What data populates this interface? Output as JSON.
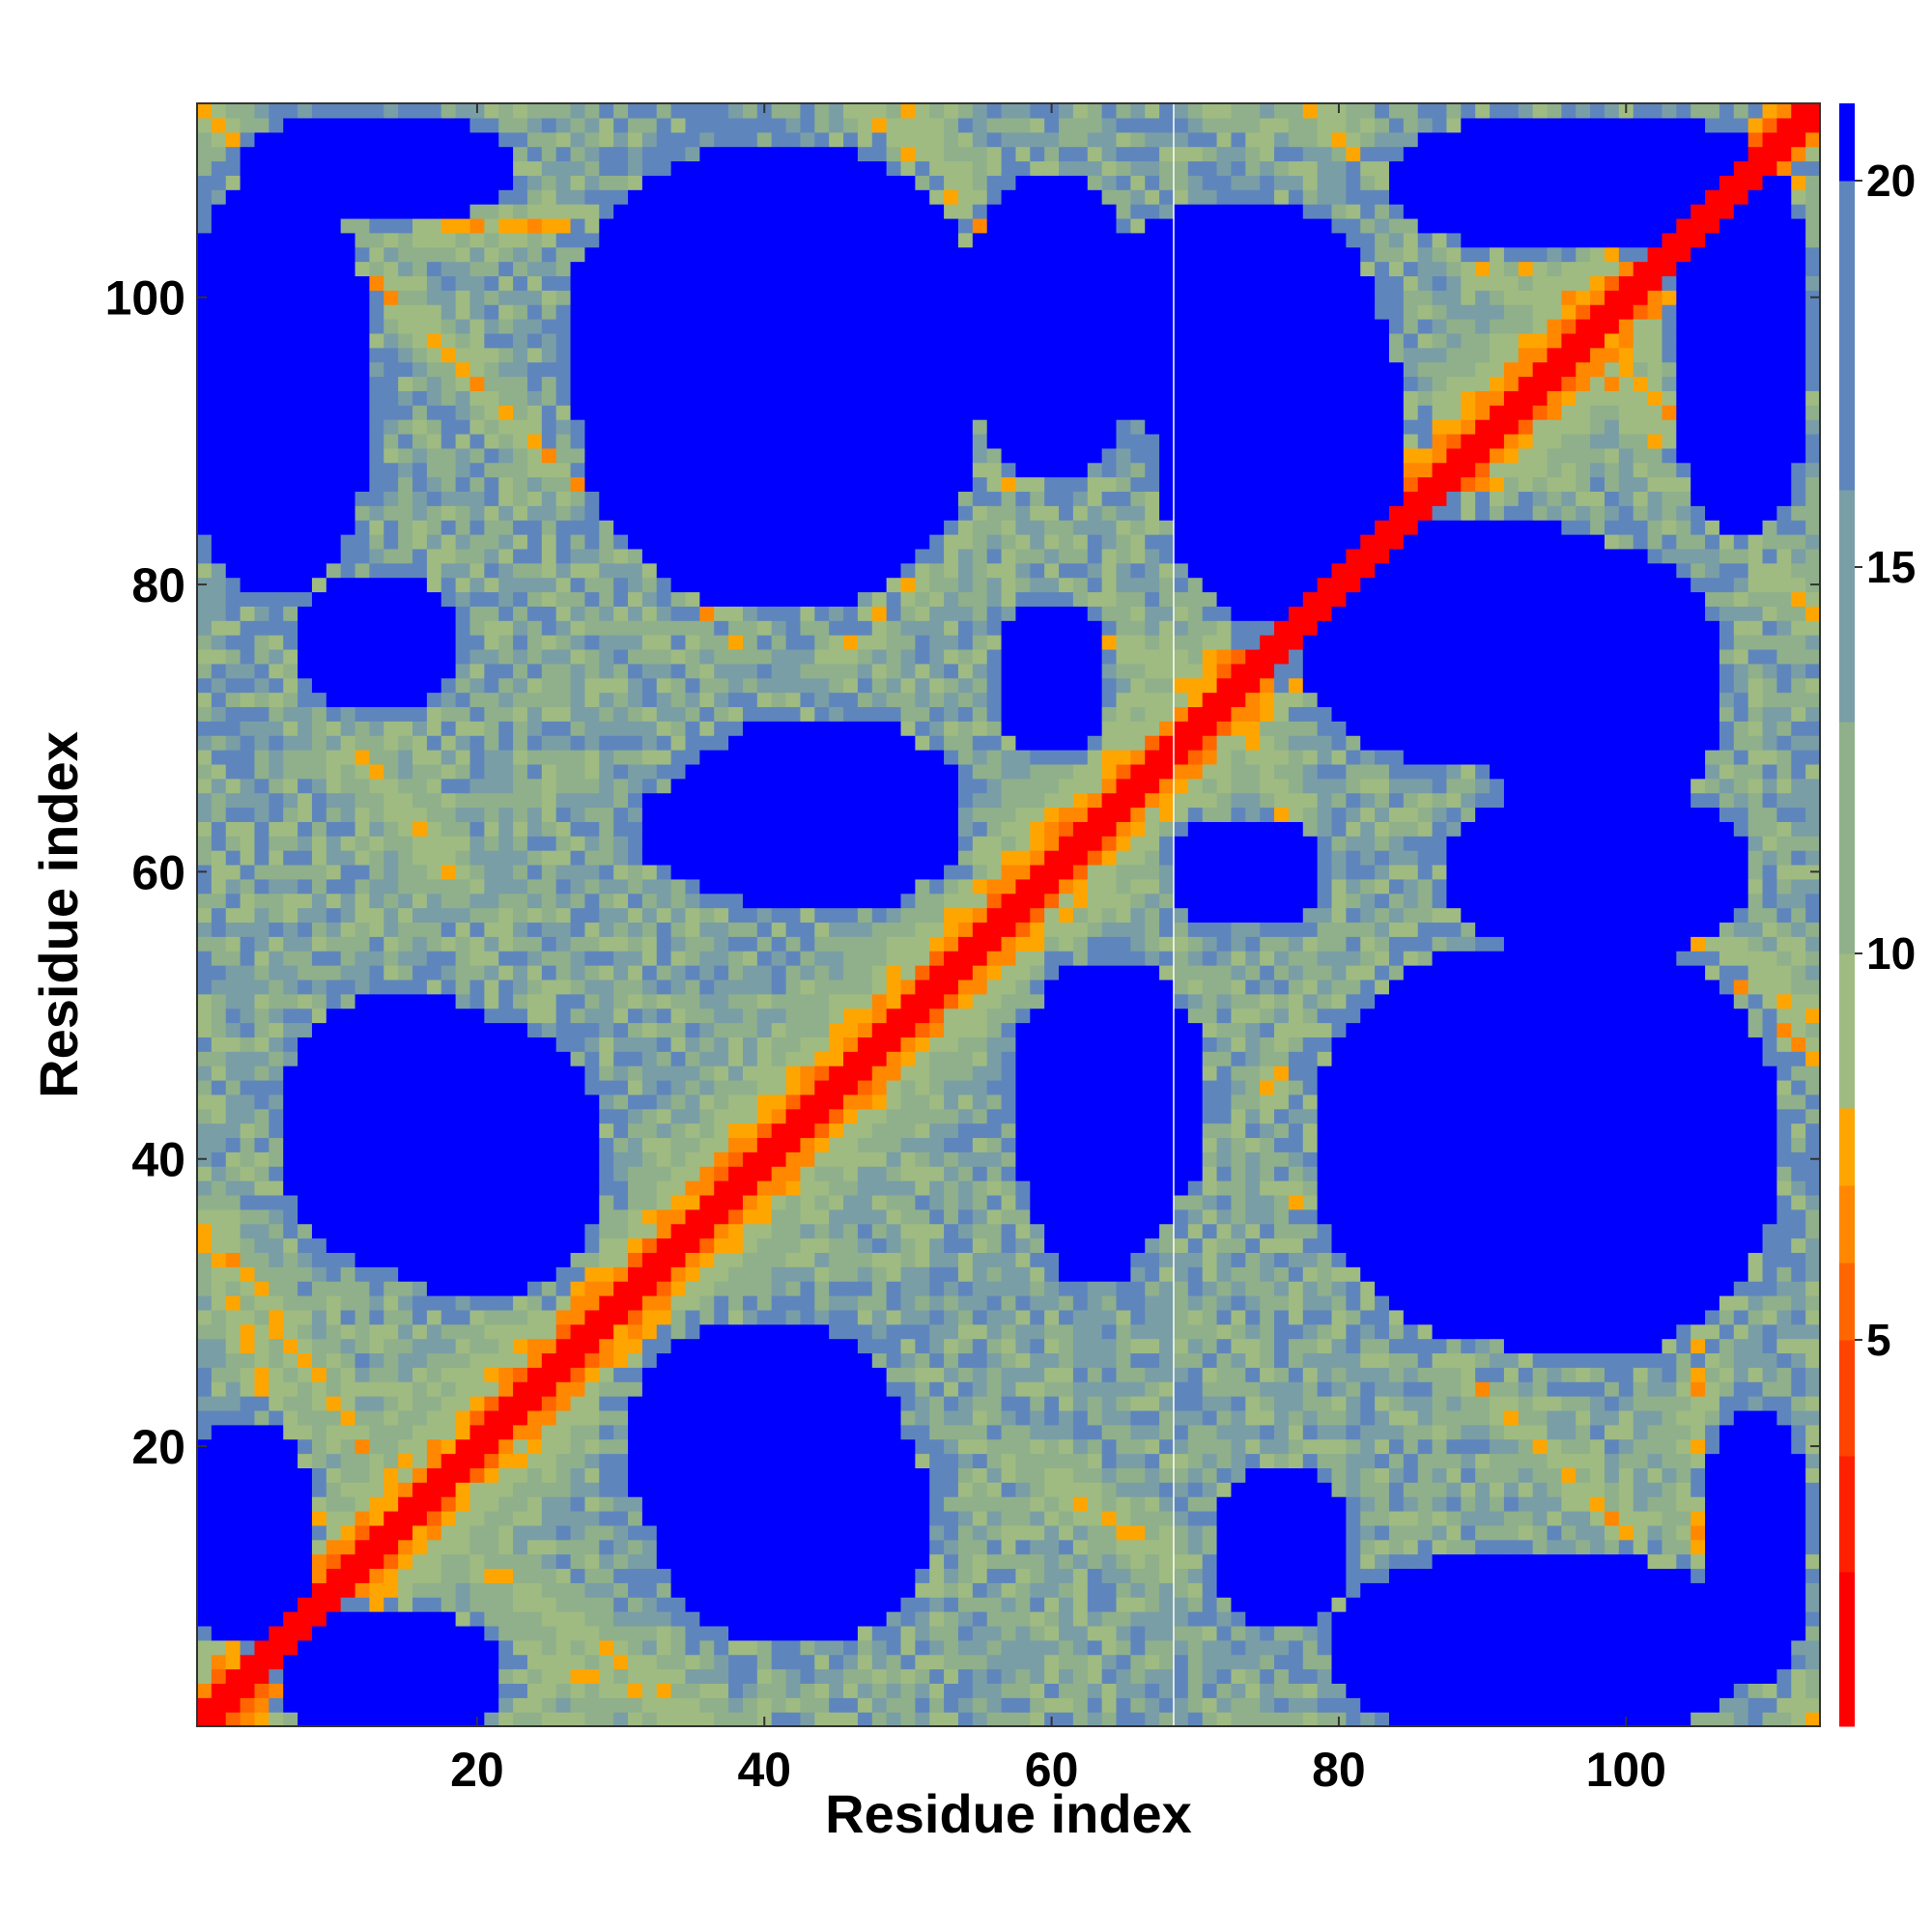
{
  "chart_data": {
    "type": "heatmap",
    "title": "",
    "xlabel": "Residue index",
    "ylabel": "Residue index",
    "xlim": [
      0.5,
      113.5
    ],
    "ylim": [
      0.5,
      113.5
    ],
    "n_residues": 113,
    "x_ticks": [
      20,
      40,
      60,
      80,
      100
    ],
    "y_ticks": [
      20,
      40,
      60,
      80,
      100
    ],
    "value_unit": "distance",
    "colorbar": {
      "range": [
        0,
        21
      ],
      "ticks": [
        5,
        10,
        15,
        20
      ],
      "tick_labels": [
        "5",
        "10",
        "15",
        "20"
      ],
      "levels": [
        {
          "max": 2,
          "color": "#ff0000"
        },
        {
          "max": 3.5,
          "color": "#ff2000"
        },
        {
          "max": 5,
          "color": "#ff4400"
        },
        {
          "max": 6,
          "color": "#ff6600"
        },
        {
          "max": 7,
          "color": "#ff8800"
        },
        {
          "max": 8,
          "color": "#ffa500"
        },
        {
          "max": 10,
          "color": "#9fbb82"
        },
        {
          "max": 13,
          "color": "#8fb08a"
        },
        {
          "max": 16,
          "color": "#7a9ea6"
        },
        {
          "max": 20,
          "color": "#5f86bc"
        },
        {
          "max": 21,
          "color": "#0000ff"
        }
      ]
    },
    "pattern": {
      "diagonal_width": 1.8,
      "contact_bands": [
        {
          "start": [
            1,
            113
          ],
          "end": [
            38,
            76
          ],
          "spread": 3.2
        },
        {
          "start": [
            47,
            113
          ],
          "end": [
            60,
            100
          ],
          "spread": 2.8
        },
        {
          "start": [
            62,
            77
          ],
          "end": [
            75,
            72
          ],
          "spread": 2.8
        },
        {
          "start": [
            75,
            45
          ],
          "end": [
            90,
            60
          ],
          "spread": 3.0
        },
        {
          "start": [
            86,
            108
          ],
          "end": [
            100,
            96
          ],
          "spread": 3.0
        },
        {
          "start": [
            98,
            95
          ],
          "end": [
            113,
            78
          ],
          "spread": 3.0
        },
        {
          "start": [
            103,
            12
          ],
          "end": [
            113,
            1
          ],
          "spread": 2.8
        },
        {
          "start": [
            102,
            58
          ],
          "end": [
            113,
            50
          ],
          "spread": 2.8
        },
        {
          "start": [
            1,
            36
          ],
          "end": [
            12,
            20
          ],
          "spread": 2.8
        },
        {
          "start": [
            12,
            10
          ],
          "end": [
            35,
            1
          ],
          "spread": 2.8
        },
        {
          "start": [
            60,
            18
          ],
          "end": [
            68,
            12
          ],
          "spread": 2.5
        },
        {
          "start": [
            13,
            105
          ],
          "end": [
            35,
            105
          ],
          "spread": 2.5
        }
      ],
      "voids": [
        {
          "center": [
            41,
            92
          ],
          "radius": [
            14,
            14
          ]
        },
        {
          "center": [
            40,
            20
          ],
          "radius": [
            10,
            9
          ]
        },
        {
          "center": [
            15,
            42
          ],
          "radius": [
            9,
            10
          ]
        },
        {
          "center": [
            41,
            63
          ],
          "radius": [
            10,
            5
          ]
        },
        {
          "center": [
            64,
            44
          ],
          "radius": [
            7,
            10
          ]
        },
        {
          "center": [
            97,
            41
          ],
          "radius": [
            14,
            15
          ]
        },
        {
          "center": [
            98,
            73
          ],
          "radius": [
            9,
            10
          ]
        },
        {
          "center": [
            76,
            90
          ],
          "radius": [
            9,
            13
          ]
        },
        {
          "center": [
            60,
            98
          ],
          "radius": [
            6,
            11
          ]
        },
        {
          "center": [
            6,
            94
          ],
          "radius": [
            7,
            15
          ]
        },
        {
          "center": [
            4,
            14
          ],
          "radius": [
            5,
            8
          ]
        },
        {
          "center": [
            76,
            13
          ],
          "radius": [
            5,
            6
          ]
        },
        {
          "center": [
            75,
            60
          ],
          "radius": [
            4,
            4
          ]
        },
        {
          "center": [
            60,
            72
          ],
          "radius": [
            4,
            4
          ]
        },
        {
          "center": [
            12,
            76
          ],
          "radius": [
            4,
            3
          ]
        },
        {
          "center": [
            109,
            13
          ],
          "radius": [
            4,
            10
          ]
        },
        {
          "center": [
            108,
            97
          ],
          "radius": [
            5,
            14
          ]
        }
      ]
    },
    "grid": false,
    "legend": "colorbar-right"
  }
}
